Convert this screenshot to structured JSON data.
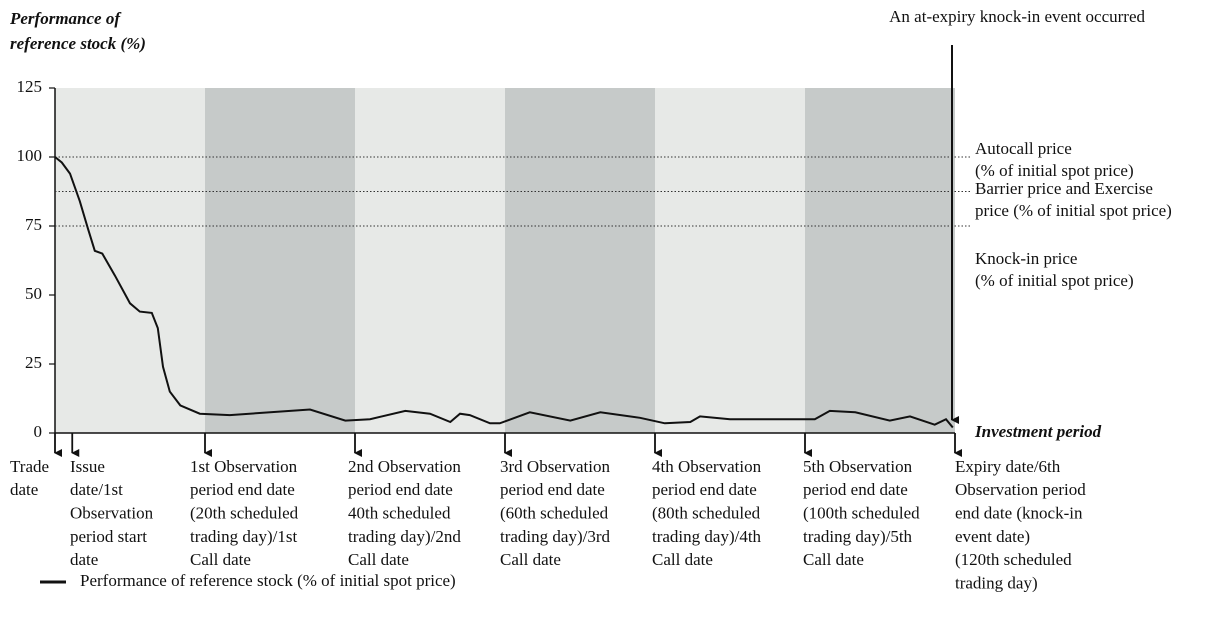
{
  "chart_data": {
    "type": "line",
    "y_label": [
      "Performance of",
      "reference stock (%)"
    ],
    "x_label": "Investment period",
    "annotation": "An at-expiry knock-in event occurred",
    "xlim": [
      0,
      120
    ],
    "ylim": [
      0,
      125
    ],
    "yticks": [
      0,
      25,
      50,
      75,
      100,
      125
    ],
    "band_colors": [
      "#e7e9e7",
      "#c6cac9"
    ],
    "series": [
      {
        "name": "Performance of reference stock (% of initial spot price)",
        "color": "#111111",
        "x": [
          0,
          0.9,
          2,
          3.3,
          4.4,
          5.3,
          6.3,
          8,
          10,
          11.3,
          12.9,
          13.7,
          14.4,
          15.3,
          16.7,
          19.3,
          23.3,
          28.7,
          34,
          38.7,
          42,
          46.7,
          50,
          52.7,
          54,
          55.3,
          58,
          59.3,
          63.3,
          68.7,
          72.7,
          78,
          81.3,
          84.7,
          86,
          90,
          101.3,
          103.3,
          106.7,
          111.3,
          114,
          117.3,
          118.8,
          119.7
        ],
        "values": [
          100,
          98,
          94,
          84,
          74,
          66,
          65,
          57,
          47,
          44,
          43.5,
          38,
          24,
          15,
          10,
          7,
          6.5,
          7.5,
          8.5,
          4.5,
          5,
          8,
          7,
          4,
          7,
          6.5,
          3.5,
          3.5,
          7.5,
          4.5,
          7.5,
          5.5,
          3.5,
          4,
          6,
          5,
          5,
          8,
          7.5,
          4.5,
          6,
          3,
          5,
          2
        ]
      }
    ],
    "reference_lines": [
      {
        "value": 100,
        "label": [
          "Autocall price",
          "(% of initial spot price)"
        ]
      },
      {
        "value": 87.5,
        "label": [
          "Barrier price and Exercise",
          "price (% of initial spot price)"
        ]
      },
      {
        "value": 75,
        "label": [
          "Knock-in price",
          "(% of initial spot price)"
        ]
      }
    ],
    "events": [
      {
        "x": 0,
        "label": [
          "Trade",
          "date"
        ]
      },
      {
        "x": 2.3,
        "label": [
          "Issue",
          "date/1st",
          "Observation",
          "period start",
          "date"
        ]
      },
      {
        "x": 20,
        "label": [
          "1st Observation",
          "period end date",
          "(20th scheduled",
          "trading day)/1st",
          "Call date"
        ]
      },
      {
        "x": 40,
        "label": [
          "2nd Observation",
          "period end date",
          "40th scheduled",
          "trading day)/2nd",
          "Call date"
        ]
      },
      {
        "x": 60,
        "label": [
          "3rd Observation",
          "period end date",
          "(60th scheduled",
          "trading day)/3rd",
          "Call date"
        ]
      },
      {
        "x": 80,
        "label": [
          "4th Observation",
          "period end date",
          "(80th scheduled",
          "trading day)/4th",
          "Call date"
        ]
      },
      {
        "x": 100,
        "label": [
          "5th Observation",
          "period end date",
          "(100th scheduled",
          "trading day)/5th",
          "Call date"
        ]
      },
      {
        "x": 120,
        "label": [
          "Expiry date/6th",
          "Observation period",
          "end date (knock-in",
          "event date)",
          "(120th scheduled",
          "trading day)"
        ]
      }
    ]
  }
}
